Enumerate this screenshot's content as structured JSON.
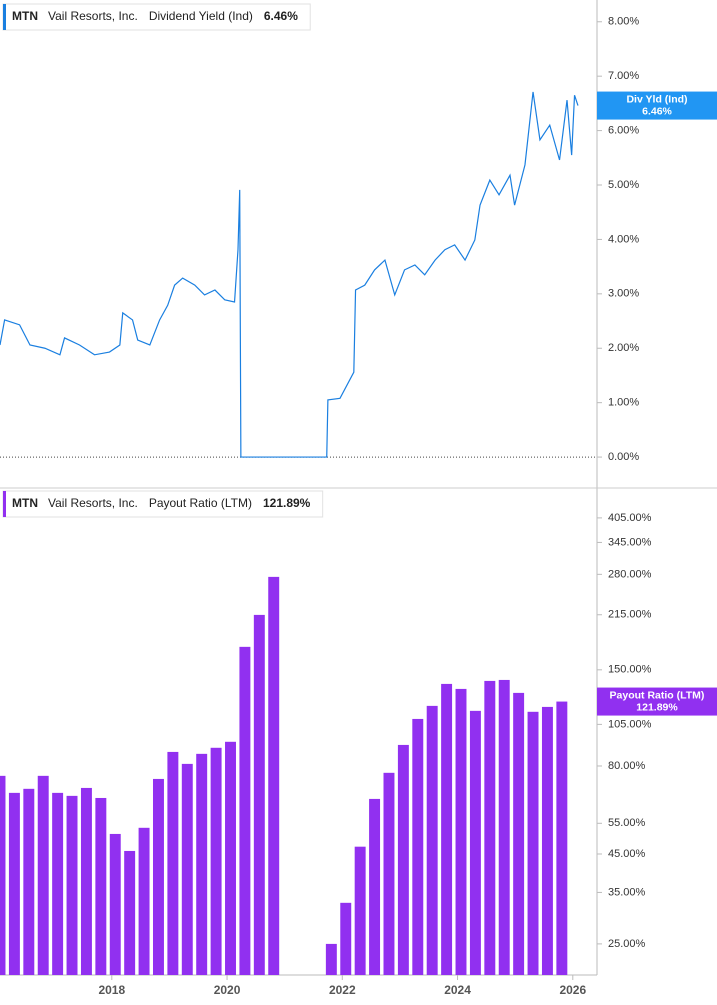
{
  "chart_data": [
    {
      "type": "line",
      "ticker": "MTN",
      "company": "Vail Resorts, Inc.",
      "badge_label": "Div Yld (Ind)",
      "current": {
        "value": 6.46,
        "label": "6.46%"
      },
      "series": [
        {
          "name": "Dividend Yield (Ind)",
          "color": "#1a7fe0",
          "x": [
            2016.06,
            2016.14,
            2016.4,
            2016.58,
            2016.84,
            2017.1,
            2017.18,
            2017.44,
            2017.7,
            2017.96,
            2018.14,
            2018.19,
            2018.36,
            2018.45,
            2018.66,
            2018.83,
            2018.97,
            2019.09,
            2019.23,
            2019.44,
            2019.61,
            2019.79,
            2019.96,
            2020.13,
            2020.19,
            2020.22,
            2020.24,
            2021.73,
            2021.75,
            2021.96,
            2022.13,
            2022.2,
            2022.23,
            2022.39,
            2022.56,
            2022.74,
            2022.91,
            2023.08,
            2023.26,
            2023.43,
            2023.61,
            2023.78,
            2023.95,
            2024.13,
            2024.3,
            2024.39,
            2024.56,
            2024.72,
            2024.91,
            2024.99,
            2025.17,
            2025.31,
            2025.43,
            2025.6,
            2025.77,
            2025.9,
            2025.98,
            2026.03,
            2026.09
          ],
          "values": [
            2.06,
            2.52,
            2.43,
            2.06,
            2.0,
            1.88,
            2.19,
            2.06,
            1.88,
            1.93,
            2.06,
            2.65,
            2.52,
            2.15,
            2.06,
            2.52,
            2.79,
            3.16,
            3.29,
            3.16,
            2.98,
            3.07,
            2.89,
            2.85,
            3.81,
            4.91,
            0,
            0,
            1.05,
            1.08,
            1.42,
            1.56,
            3.07,
            3.16,
            3.44,
            3.62,
            2.98,
            3.44,
            3.53,
            3.35,
            3.62,
            3.81,
            3.9,
            3.62,
            3.99,
            4.63,
            5.09,
            4.82,
            5.18,
            4.63,
            5.37,
            6.71,
            5.83,
            6.1,
            5.46,
            6.56,
            5.55,
            6.65,
            6.46
          ]
        }
      ],
      "badge_color": "#2196f3",
      "xlim": [
        2016.06,
        2026.42
      ],
      "ylim": [
        -0.55,
        8.4
      ],
      "yticks": [
        {
          "value": 0,
          "label": "0.00%"
        },
        {
          "value": 1,
          "label": "1.00%"
        },
        {
          "value": 2,
          "label": "2.00%"
        },
        {
          "value": 3,
          "label": "3.00%"
        },
        {
          "value": 4,
          "label": "4.00%"
        },
        {
          "value": 5,
          "label": "5.00%"
        },
        {
          "value": 6,
          "label": "6.00%"
        },
        {
          "value": 7,
          "label": "7.00%"
        },
        {
          "value": 8,
          "label": "8.00%"
        }
      ],
      "zero_line": true
    },
    {
      "type": "bar",
      "ticker": "MTN",
      "company": "Vail Resorts, Inc.",
      "badge_label": "Payout Ratio (LTM)",
      "current": {
        "value": 121.89,
        "label": "121.89%"
      },
      "series": [
        {
          "name": "Payout Ratio (LTM)",
          "color": "#9130f0",
          "x": [
            2016.06,
            2016.31,
            2016.56,
            2016.81,
            2017.06,
            2017.31,
            2017.56,
            2017.81,
            2018.06,
            2018.31,
            2018.56,
            2018.81,
            2019.06,
            2019.31,
            2019.56,
            2019.81,
            2020.06,
            2020.31,
            2020.56,
            2020.81,
            2021.06,
            2021.31,
            2021.56,
            2021.81,
            2022.06,
            2022.31,
            2022.56,
            2022.81,
            2023.06,
            2023.31,
            2023.56,
            2023.81,
            2024.06,
            2024.31,
            2024.56,
            2024.81,
            2025.06,
            2025.31,
            2025.56,
            2025.81
          ],
          "values": [
            75.0,
            67.1,
            68.9,
            75.0,
            67.1,
            65.8,
            69.3,
            64.9,
            51.3,
            45.9,
            53.4,
            73.5,
            87.7,
            81.1,
            86.6,
            90.1,
            93.7,
            174.3,
            214.8,
            275.4,
            null,
            null,
            null,
            25.0,
            32.7,
            47.2,
            64.5,
            76.5,
            91.8,
            108.8,
            118.5,
            136.8,
            132.4,
            114.7,
            139.5,
            140.4,
            129.0,
            114.0,
            117.7,
            121.89
          ]
        }
      ],
      "badge_color": "#9130f0",
      "log_scale": true,
      "xlim": [
        2016.06,
        2026.42
      ],
      "xticks": [
        2018,
        2020,
        2022,
        2024,
        2026
      ],
      "ylim": [
        20.4,
        486
      ],
      "yticks": [
        {
          "value": 405,
          "label": "405.00%"
        },
        {
          "value": 345,
          "label": "345.00%"
        },
        {
          "value": 280,
          "label": "280.00%"
        },
        {
          "value": 215,
          "label": "215.00%"
        },
        {
          "value": 150,
          "label": "150.00%"
        },
        {
          "value": 105,
          "label": "105.00%"
        },
        {
          "value": 80,
          "label": "80.00%"
        },
        {
          "value": 55,
          "label": "55.00%"
        },
        {
          "value": 45,
          "label": "45.00%"
        },
        {
          "value": 35,
          "label": "35.00%"
        },
        {
          "value": 25,
          "label": "25.00%"
        }
      ]
    }
  ]
}
